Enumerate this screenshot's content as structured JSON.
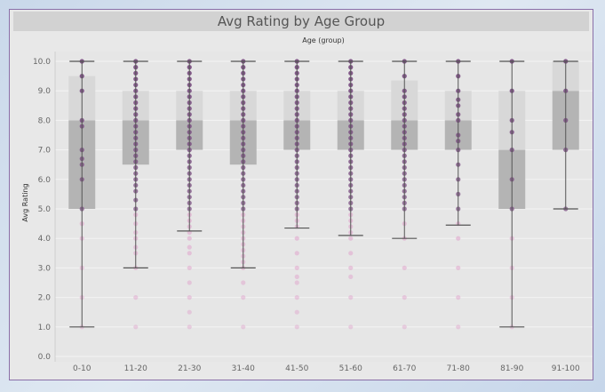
{
  "chart_data": {
    "type": "boxplot",
    "title": "Avg Rating by Age Group",
    "column_header": "Age (group)",
    "ylabel": "Avg Rating",
    "ylim": [
      0,
      10.5
    ],
    "yticks": [
      "0.0",
      "1.0",
      "2.0",
      "3.0",
      "4.0",
      "5.0",
      "6.0",
      "7.0",
      "8.0",
      "9.0",
      "10.0"
    ],
    "grid": true,
    "colors": {
      "box_lower": "#b4b4b4",
      "box_upper": "#d8d8d8",
      "whisker": "#555555",
      "point_dark": "#7b4f82",
      "point_light": "#e0a4cc"
    },
    "categories": [
      "0-10",
      "11-20",
      "21-30",
      "31-40",
      "41-50",
      "51-60",
      "61-70",
      "71-80",
      "81-90",
      "91-100"
    ],
    "series": [
      {
        "category": "0-10",
        "whisker_low": 1.0,
        "q1": 5.0,
        "median": 8.0,
        "q3": 9.5,
        "whisker_high": 10.0,
        "points": [
          10,
          9.5,
          9,
          8,
          7.8,
          7,
          6.7,
          6.5,
          6,
          5,
          4.5,
          4,
          3,
          2,
          1
        ]
      },
      {
        "category": "11-20",
        "whisker_low": 3.0,
        "q1": 6.5,
        "median": 8.0,
        "q3": 9.0,
        "whisker_high": 10.0,
        "points": [
          10,
          9.8,
          9.6,
          9.4,
          9.2,
          9,
          8.8,
          8.6,
          8.4,
          8.2,
          8,
          7.8,
          7.6,
          7.4,
          7.2,
          7,
          6.8,
          6.6,
          6.4,
          6.2,
          6,
          5.8,
          5.6,
          5.3,
          5,
          4.8,
          4.5,
          4.2,
          4,
          3.7,
          3.5,
          3,
          2,
          1
        ]
      },
      {
        "category": "21-30",
        "whisker_low": 4.25,
        "q1": 7.0,
        "median": 8.0,
        "q3": 9.0,
        "whisker_high": 10.0,
        "points": [
          10,
          9.8,
          9.6,
          9.4,
          9.2,
          9,
          8.8,
          8.6,
          8.4,
          8.2,
          8,
          7.8,
          7.6,
          7.4,
          7.2,
          7,
          6.8,
          6.6,
          6.4,
          6.2,
          6,
          5.8,
          5.6,
          5.4,
          5.2,
          5,
          4.8,
          4.6,
          4.4,
          4.2,
          4,
          3.7,
          3.5,
          3,
          2.5,
          2,
          1.5,
          1
        ]
      },
      {
        "category": "31-40",
        "whisker_low": 3.0,
        "q1": 6.5,
        "median": 8.0,
        "q3": 9.0,
        "whisker_high": 10.0,
        "points": [
          10,
          9.8,
          9.6,
          9.4,
          9.2,
          9,
          8.8,
          8.6,
          8.4,
          8.2,
          8,
          7.8,
          7.6,
          7.4,
          7.2,
          7,
          6.8,
          6.6,
          6.4,
          6.2,
          6,
          5.8,
          5.6,
          5.4,
          5.2,
          5,
          4.8,
          4.6,
          4.4,
          4.2,
          4,
          3.8,
          3.6,
          3.4,
          3.2,
          3,
          2.5,
          2,
          1
        ]
      },
      {
        "category": "41-50",
        "whisker_low": 4.35,
        "q1": 7.0,
        "median": 8.0,
        "q3": 9.0,
        "whisker_high": 10.0,
        "points": [
          10,
          9.8,
          9.6,
          9.4,
          9.2,
          9,
          8.8,
          8.6,
          8.4,
          8.2,
          8,
          7.8,
          7.6,
          7.4,
          7.2,
          7,
          6.8,
          6.6,
          6.4,
          6.2,
          6,
          5.8,
          5.6,
          5.4,
          5.2,
          5,
          4.8,
          4.6,
          4.4,
          4,
          3.5,
          3,
          2.7,
          2.5,
          2,
          1.5,
          1
        ]
      },
      {
        "category": "51-60",
        "whisker_low": 4.1,
        "q1": 7.0,
        "median": 8.0,
        "q3": 9.0,
        "whisker_high": 10.0,
        "points": [
          10,
          9.8,
          9.6,
          9.4,
          9.2,
          9,
          8.8,
          8.6,
          8.4,
          8.2,
          8,
          7.8,
          7.6,
          7.4,
          7.2,
          7,
          6.8,
          6.6,
          6.4,
          6.2,
          6,
          5.8,
          5.6,
          5.4,
          5.2,
          5,
          4.8,
          4.6,
          4.4,
          4.2,
          4,
          3.5,
          3,
          2.7,
          2,
          1
        ]
      },
      {
        "category": "61-70",
        "whisker_low": 4.0,
        "q1": 7.0,
        "median": 8.0,
        "q3": 9.35,
        "whisker_high": 10.0,
        "points": [
          10,
          9.5,
          9,
          8.8,
          8.6,
          8.4,
          8.2,
          8,
          7.8,
          7.6,
          7.4,
          7.2,
          7,
          6.8,
          6.6,
          6.4,
          6.2,
          6,
          5.8,
          5.6,
          5.4,
          5.2,
          5,
          4.5,
          4,
          3,
          2,
          1
        ]
      },
      {
        "category": "71-80",
        "whisker_low": 4.45,
        "q1": 7.0,
        "median": 8.0,
        "q3": 9.0,
        "whisker_high": 10.0,
        "points": [
          10,
          9.5,
          9,
          8.7,
          8.5,
          8.2,
          8,
          7.5,
          7.3,
          7,
          6.5,
          6,
          5.5,
          5,
          4.5,
          4,
          3,
          2,
          1
        ]
      },
      {
        "category": "81-90",
        "whisker_low": 1.0,
        "q1": 5.0,
        "median": 7.0,
        "q3": 9.0,
        "whisker_high": 10.0,
        "points": [
          10,
          9,
          8,
          7.6,
          7,
          6,
          5,
          4,
          3,
          2,
          1
        ]
      },
      {
        "category": "91-100",
        "whisker_low": 5.0,
        "q1": 7.0,
        "median": 9.0,
        "q3": 10.0,
        "whisker_high": 10.0,
        "points": [
          10,
          9,
          8,
          7,
          5
        ]
      }
    ]
  }
}
